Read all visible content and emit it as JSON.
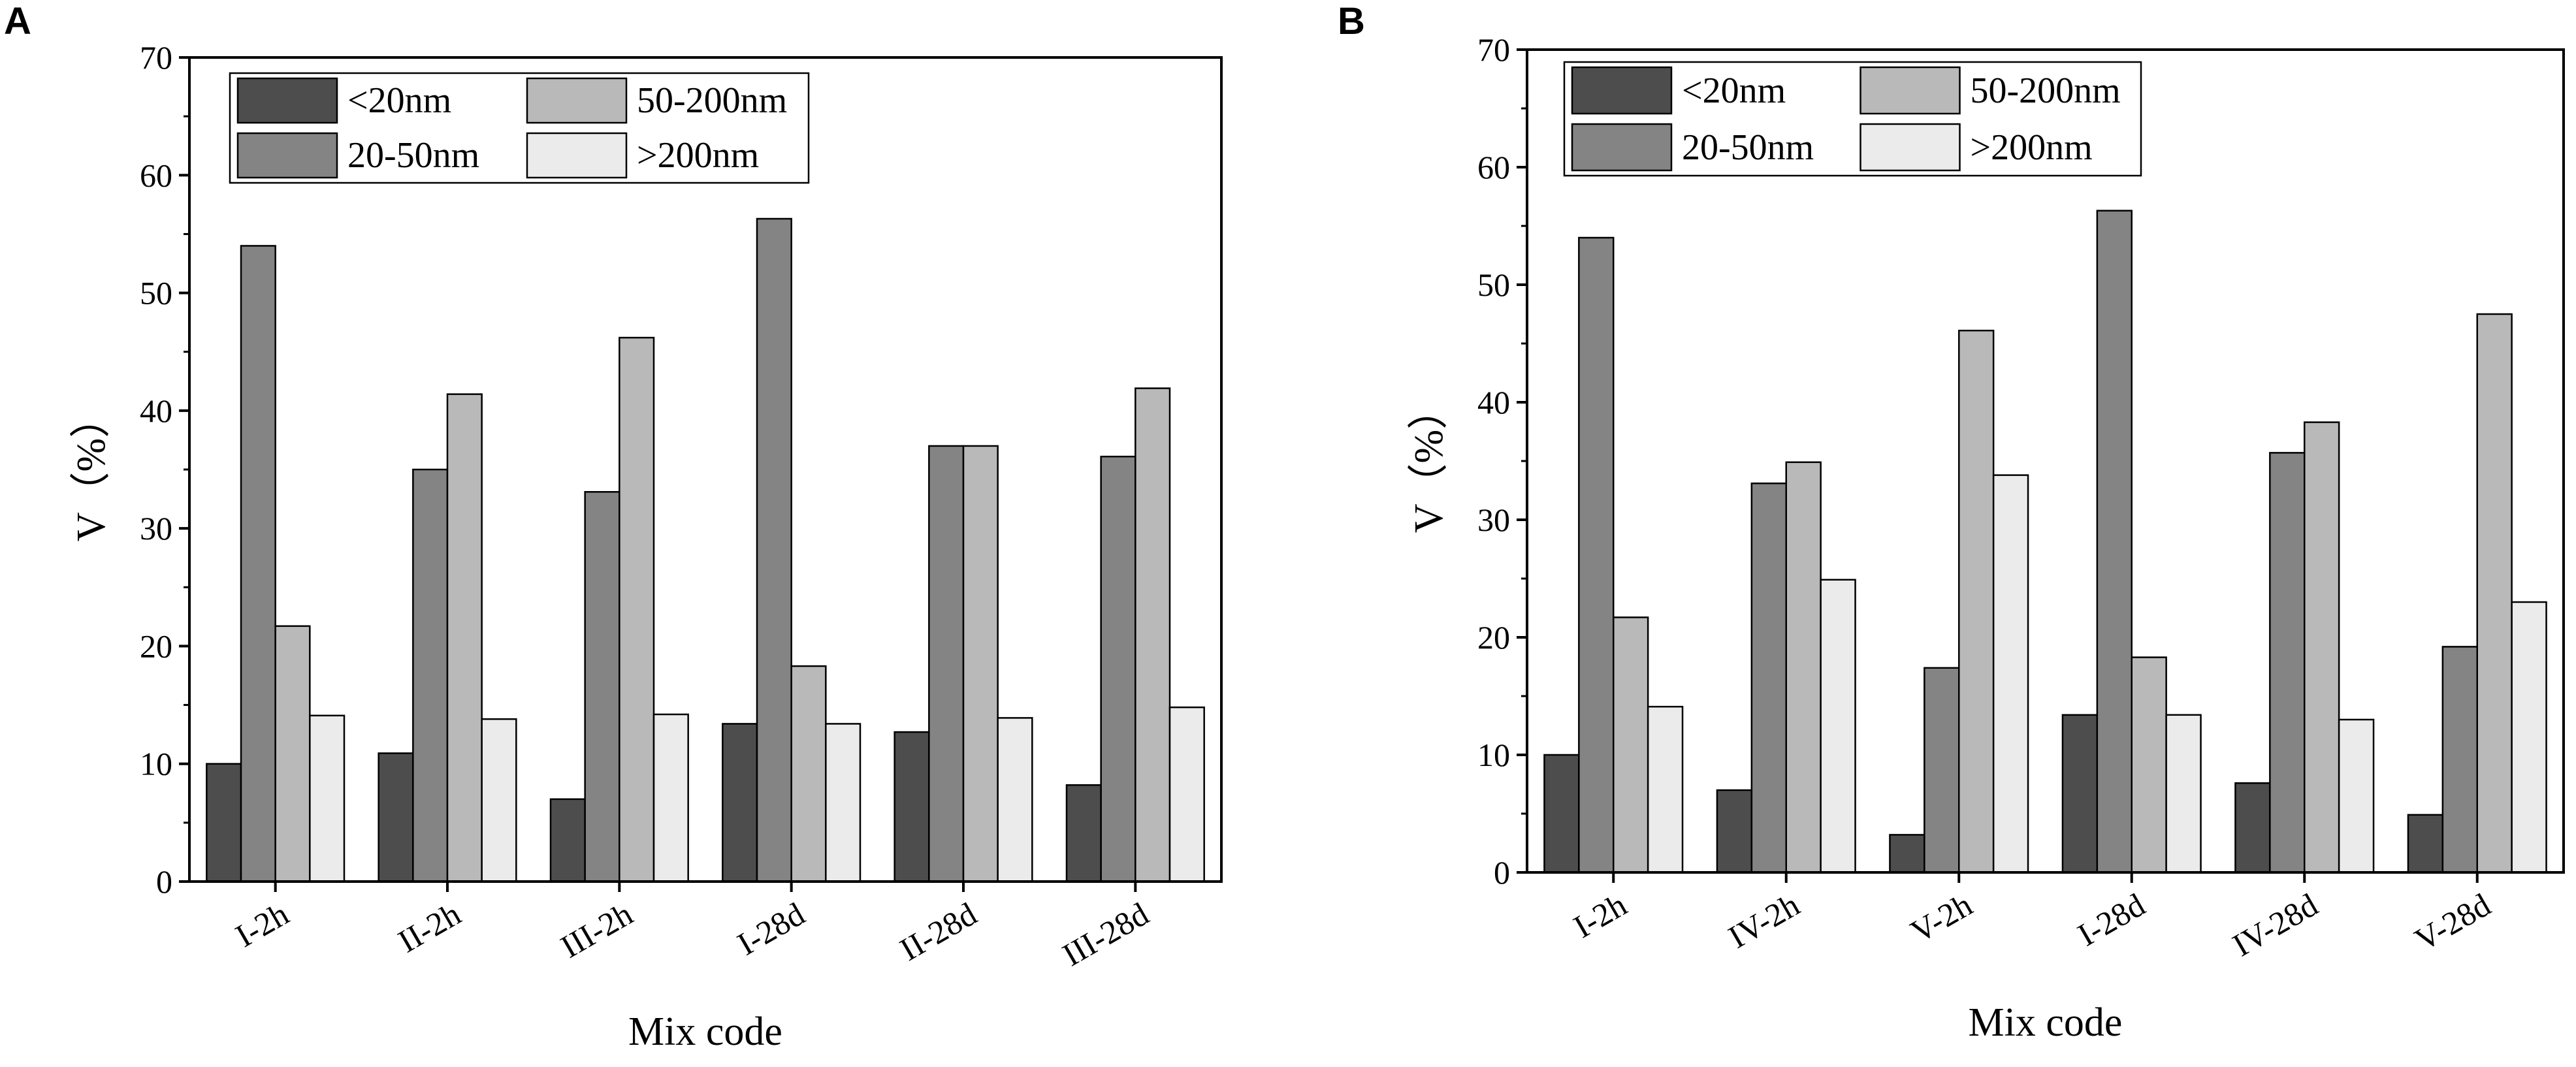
{
  "chart_data": [
    {
      "panel": "A",
      "type": "bar",
      "title": "",
      "xlabel": "Mix code",
      "ylabel": "V（%）",
      "ylim": [
        0,
        70
      ],
      "yticks": [
        "0",
        "10",
        "20",
        "30",
        "40",
        "50",
        "60",
        "70"
      ],
      "categories": [
        "I-2h",
        "II-2h",
        "III-2h",
        "I-28d",
        "II-28d",
        "III-28d"
      ],
      "legend_position": "top-left",
      "series": [
        {
          "name": "<20nm",
          "color": "#4d4d4d",
          "values": [
            10.0,
            10.9,
            7.0,
            13.4,
            12.7,
            8.2
          ]
        },
        {
          "name": "20-50nm",
          "color": "#848484",
          "values": [
            54.0,
            35.0,
            33.1,
            56.3,
            37.0,
            36.1
          ]
        },
        {
          "name": "50-200nm",
          "color": "#b9b9b9",
          "values": [
            21.7,
            41.4,
            46.2,
            18.3,
            37.0,
            41.9
          ]
        },
        {
          "name": ">200nm",
          "color": "#ebebeb",
          "values": [
            14.1,
            13.8,
            14.2,
            13.4,
            13.9,
            14.8
          ]
        }
      ]
    },
    {
      "panel": "B",
      "type": "bar",
      "title": "",
      "xlabel": "Mix code",
      "ylabel": "V（%）",
      "ylim": [
        0,
        70
      ],
      "yticks": [
        "0",
        "10",
        "20",
        "30",
        "40",
        "50",
        "60",
        "70"
      ],
      "categories": [
        "I-2h",
        "IV-2h",
        "V-2h",
        "I-28d",
        "IV-28d",
        "V-28d"
      ],
      "legend_position": "top-left",
      "series": [
        {
          "name": "<20nm",
          "color": "#4d4d4d",
          "values": [
            10.0,
            7.0,
            3.2,
            13.4,
            7.6,
            4.9
          ]
        },
        {
          "name": "20-50nm",
          "color": "#848484",
          "values": [
            54.0,
            33.1,
            17.4,
            56.3,
            35.7,
            19.2
          ]
        },
        {
          "name": "50-200nm",
          "color": "#b9b9b9",
          "values": [
            21.7,
            34.9,
            46.1,
            18.3,
            38.3,
            47.5
          ]
        },
        {
          "name": ">200nm",
          "color": "#ebebeb",
          "values": [
            14.1,
            24.9,
            33.8,
            13.4,
            13.0,
            23.0
          ]
        }
      ]
    }
  ]
}
